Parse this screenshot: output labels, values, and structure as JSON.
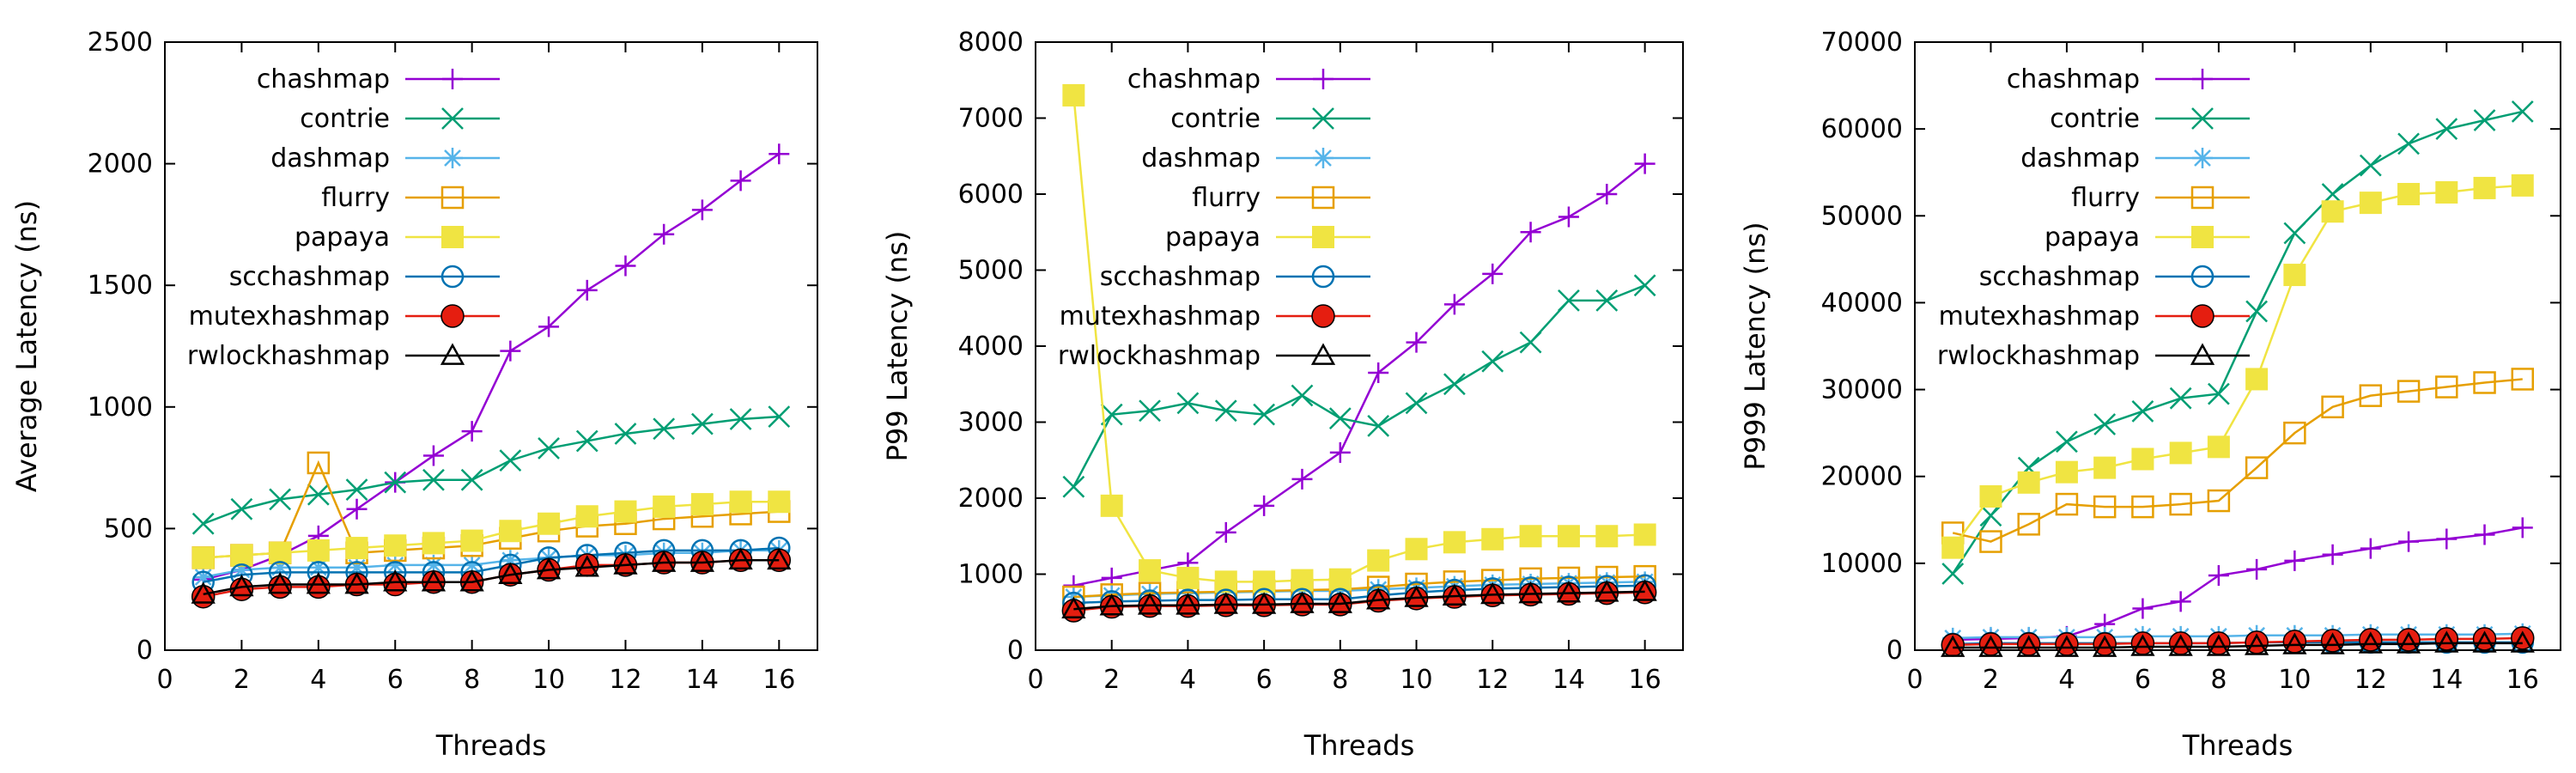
{
  "chart_data": [
    {
      "type": "line",
      "panel": "left",
      "xlabel": "Threads",
      "ylabel": "Average Latency (ns)",
      "xlim": [
        0,
        17
      ],
      "ylim": [
        0,
        2500
      ],
      "xticks": [
        "0",
        "2",
        "4",
        "6",
        "8",
        "10",
        "12",
        "14",
        "16"
      ],
      "yticks": [
        "0",
        "500",
        "1000",
        "1500",
        "2000",
        "2500"
      ],
      "xtick_values": [
        0,
        2,
        4,
        6,
        8,
        10,
        12,
        14,
        16
      ],
      "ytick_values": [
        0,
        500,
        1000,
        1500,
        2000,
        2500
      ],
      "legend_position": "top-left",
      "x": [
        1,
        2,
        3,
        4,
        5,
        6,
        7,
        8,
        9,
        10,
        11,
        12,
        13,
        14,
        15,
        16
      ],
      "series": [
        {
          "name": "chashmap",
          "color": "#9400d3",
          "marker": "plus",
          "values": [
            290,
            330,
            390,
            470,
            580,
            690,
            800,
            900,
            1230,
            1330,
            1480,
            1580,
            1710,
            1810,
            1930,
            2040
          ]
        },
        {
          "name": "contrie",
          "color": "#009e73",
          "marker": "cross",
          "values": [
            520,
            580,
            620,
            640,
            660,
            690,
            700,
            700,
            780,
            830,
            860,
            890,
            910,
            930,
            950,
            960
          ]
        },
        {
          "name": "dashmap",
          "color": "#56b4e9",
          "marker": "star",
          "values": [
            300,
            330,
            340,
            340,
            340,
            350,
            350,
            350,
            370,
            380,
            390,
            390,
            400,
            400,
            410,
            410
          ]
        },
        {
          "name": "flurry",
          "color": "#e69f00",
          "marker": "open-square",
          "values": [
            380,
            390,
            400,
            770,
            400,
            410,
            420,
            430,
            460,
            490,
            510,
            520,
            540,
            550,
            560,
            570
          ]
        },
        {
          "name": "papaya",
          "color": "#f0e442",
          "marker": "filled-square",
          "values": [
            380,
            390,
            400,
            410,
            420,
            430,
            440,
            450,
            490,
            520,
            550,
            570,
            590,
            600,
            610,
            610
          ]
        },
        {
          "name": "scchashmap",
          "color": "#0072b2",
          "marker": "open-circle",
          "values": [
            280,
            310,
            320,
            320,
            320,
            320,
            320,
            320,
            350,
            380,
            390,
            400,
            410,
            410,
            410,
            420
          ]
        },
        {
          "name": "mutexhashmap",
          "color": "#e51e10",
          "marker": "filled-circle",
          "values": [
            220,
            250,
            260,
            260,
            270,
            270,
            280,
            280,
            310,
            330,
            350,
            350,
            360,
            360,
            370,
            370
          ]
        },
        {
          "name": "rwlockhashmap",
          "color": "#000000",
          "marker": "open-triangle",
          "values": [
            230,
            260,
            270,
            270,
            270,
            280,
            280,
            280,
            310,
            330,
            340,
            350,
            360,
            360,
            370,
            370
          ]
        }
      ]
    },
    {
      "type": "line",
      "panel": "middle",
      "xlabel": "Threads",
      "ylabel": "P99 Latency (ns)",
      "xlim": [
        0,
        17
      ],
      "ylim": [
        0,
        8000
      ],
      "xticks": [
        "0",
        "2",
        "4",
        "6",
        "8",
        "10",
        "12",
        "14",
        "16"
      ],
      "yticks": [
        "0",
        "1000",
        "2000",
        "3000",
        "4000",
        "5000",
        "6000",
        "7000",
        "8000"
      ],
      "xtick_values": [
        0,
        2,
        4,
        6,
        8,
        10,
        12,
        14,
        16
      ],
      "ytick_values": [
        0,
        1000,
        2000,
        3000,
        4000,
        5000,
        6000,
        7000,
        8000
      ],
      "legend_position": "top-left",
      "x": [
        1,
        2,
        3,
        4,
        5,
        6,
        7,
        8,
        9,
        10,
        11,
        12,
        13,
        14,
        15,
        16
      ],
      "series": [
        {
          "name": "chashmap",
          "color": "#9400d3",
          "marker": "plus",
          "values": [
            850,
            950,
            1050,
            1150,
            1550,
            1900,
            2250,
            2600,
            3650,
            4050,
            4550,
            4950,
            5500,
            5700,
            6000,
            6400
          ]
        },
        {
          "name": "contrie",
          "color": "#009e73",
          "marker": "cross",
          "values": [
            2150,
            3100,
            3150,
            3250,
            3150,
            3100,
            3350,
            3050,
            2950,
            3250,
            3500,
            3800,
            4050,
            4600,
            4600,
            4800
          ]
        },
        {
          "name": "dashmap",
          "color": "#56b4e9",
          "marker": "star",
          "values": [
            700,
            720,
            740,
            750,
            760,
            770,
            780,
            780,
            800,
            820,
            840,
            860,
            870,
            880,
            890,
            900
          ]
        },
        {
          "name": "flurry",
          "color": "#e69f00",
          "marker": "open-square",
          "values": [
            700,
            730,
            750,
            760,
            770,
            780,
            790,
            800,
            830,
            870,
            900,
            920,
            940,
            950,
            960,
            970
          ]
        },
        {
          "name": "papaya",
          "color": "#f0e442",
          "marker": "filled-square",
          "values": [
            7300,
            1900,
            1050,
            950,
            900,
            900,
            920,
            930,
            1180,
            1330,
            1420,
            1460,
            1500,
            1500,
            1500,
            1520
          ]
        },
        {
          "name": "scchashmap",
          "color": "#0072b2",
          "marker": "open-circle",
          "values": [
            620,
            640,
            650,
            660,
            660,
            670,
            670,
            670,
            720,
            760,
            790,
            810,
            820,
            830,
            840,
            850
          ]
        },
        {
          "name": "mutexhashmap",
          "color": "#e51e10",
          "marker": "filled-circle",
          "values": [
            520,
            570,
            580,
            580,
            590,
            590,
            600,
            600,
            650,
            680,
            700,
            720,
            730,
            740,
            750,
            760
          ]
        },
        {
          "name": "rwlockhashmap",
          "color": "#000000",
          "marker": "open-triangle",
          "values": [
            540,
            580,
            590,
            590,
            600,
            600,
            610,
            610,
            660,
            690,
            710,
            730,
            740,
            750,
            760,
            770
          ]
        }
      ]
    },
    {
      "type": "line",
      "panel": "right",
      "xlabel": "Threads",
      "ylabel": "P999 Latency (ns)",
      "xlim": [
        0,
        17
      ],
      "ylim": [
        0,
        70000
      ],
      "xticks": [
        "0",
        "2",
        "4",
        "6",
        "8",
        "10",
        "12",
        "14",
        "16"
      ],
      "yticks": [
        "0",
        "10000",
        "20000",
        "30000",
        "40000",
        "50000",
        "60000",
        "70000"
      ],
      "xtick_values": [
        0,
        2,
        4,
        6,
        8,
        10,
        12,
        14,
        16
      ],
      "ytick_values": [
        0,
        10000,
        20000,
        30000,
        40000,
        50000,
        60000,
        70000
      ],
      "legend_position": "top-left",
      "x": [
        1,
        2,
        3,
        4,
        5,
        6,
        7,
        8,
        9,
        10,
        11,
        12,
        13,
        14,
        15,
        16
      ],
      "series": [
        {
          "name": "chashmap",
          "color": "#9400d3",
          "marker": "plus",
          "values": [
            1200,
            1300,
            1400,
            1600,
            3000,
            4800,
            5600,
            8600,
            9300,
            10300,
            11000,
            11700,
            12500,
            12800,
            13300,
            14100
          ]
        },
        {
          "name": "contrie",
          "color": "#009e73",
          "marker": "cross",
          "values": [
            8800,
            15500,
            21000,
            24000,
            26000,
            27500,
            29000,
            29500,
            39000,
            48000,
            52500,
            55800,
            58300,
            60000,
            61000,
            62000
          ]
        },
        {
          "name": "dashmap",
          "color": "#56b4e9",
          "marker": "star",
          "values": [
            1400,
            1500,
            1500,
            1500,
            1500,
            1600,
            1600,
            1600,
            1700,
            1700,
            1700,
            1800,
            1800,
            1800,
            1800,
            1900
          ]
        },
        {
          "name": "flurry",
          "color": "#e69f00",
          "marker": "open-square",
          "values": [
            13500,
            12500,
            14500,
            16800,
            16500,
            16500,
            16800,
            17200,
            21000,
            25000,
            28000,
            29300,
            29800,
            30300,
            30800,
            31200
          ]
        },
        {
          "name": "papaya",
          "color": "#f0e442",
          "marker": "filled-square",
          "values": [
            11800,
            17700,
            19300,
            20500,
            21000,
            22000,
            22700,
            23400,
            31200,
            43200,
            50500,
            51500,
            52500,
            52700,
            53200,
            53500
          ]
        },
        {
          "name": "scchashmap",
          "color": "#0072b2",
          "marker": "open-circle",
          "values": [
            700,
            800,
            800,
            800,
            800,
            800,
            800,
            800,
            900,
            900,
            900,
            900,
            900,
            900,
            900,
            900
          ]
        },
        {
          "name": "mutexhashmap",
          "color": "#e51e10",
          "marker": "filled-circle",
          "values": [
            600,
            700,
            700,
            700,
            700,
            800,
            800,
            800,
            900,
            1000,
            1100,
            1200,
            1200,
            1300,
            1300,
            1400
          ]
        },
        {
          "name": "rwlockhashmap",
          "color": "#000000",
          "marker": "open-triangle",
          "values": [
            300,
            300,
            300,
            300,
            300,
            400,
            400,
            400,
            500,
            600,
            600,
            700,
            700,
            800,
            800,
            800
          ]
        }
      ]
    }
  ]
}
